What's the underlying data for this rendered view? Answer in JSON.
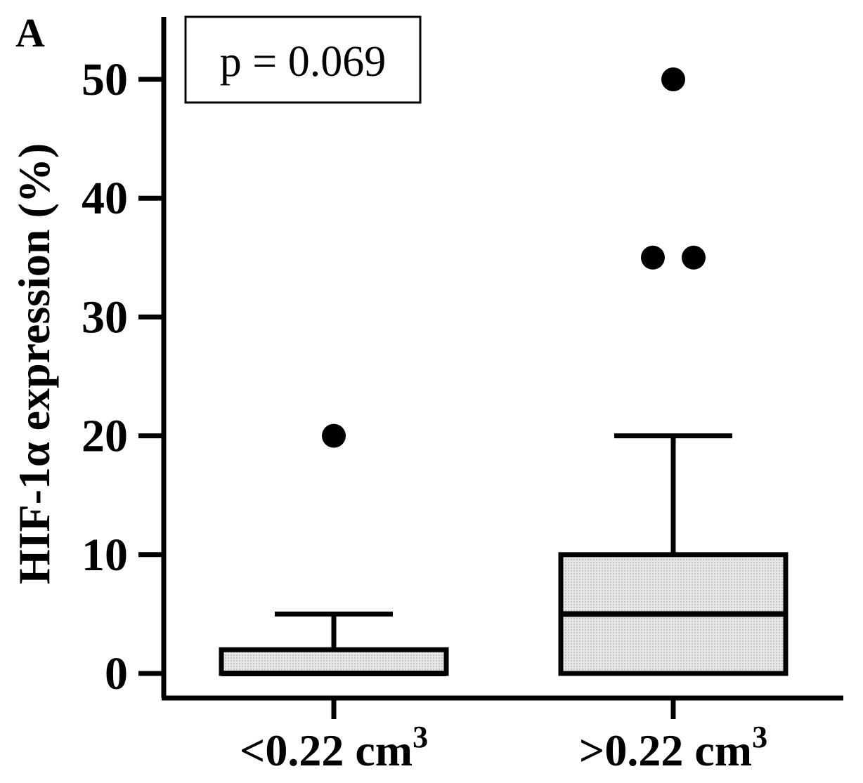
{
  "panel_label": "A",
  "annotation": "p = 0.069",
  "chart_data": {
    "type": "box",
    "title": "",
    "xlabel": "",
    "ylabel": "HIF-1α expression (%)",
    "ylim": [
      0,
      50
    ],
    "yticks": [
      0,
      10,
      20,
      30,
      40,
      50
    ],
    "ytick_labels": [
      "0",
      "10",
      "20",
      "30",
      "40",
      "50"
    ],
    "categories": [
      {
        "label": "<0.22 cm",
        "unit_power": "3"
      },
      {
        "label": ">0.22 cm",
        "unit_power": "3"
      }
    ],
    "boxes": [
      {
        "whisker_low": 0,
        "q1": 0,
        "median": 0,
        "q3": 2,
        "whisker_high": 5,
        "outliers": [
          20
        ]
      },
      {
        "whisker_low": 0,
        "q1": 0,
        "median": 5,
        "q3": 10,
        "whisker_high": 20,
        "outliers": [
          50,
          35,
          35
        ]
      }
    ],
    "box_fill": "#d9d9d9",
    "grid": false
  }
}
